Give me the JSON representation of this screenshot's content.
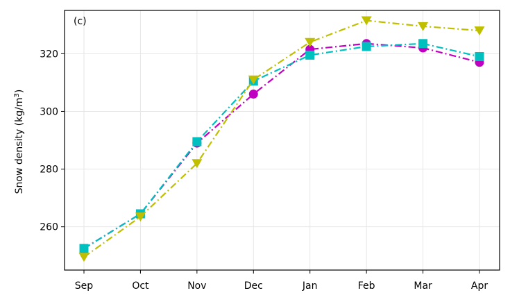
{
  "chart_data": {
    "type": "line",
    "panel_label": "(c)",
    "ylabel_main": "Snow density (kg/m",
    "ylabel_sup": "3",
    "ylabel_close": ")",
    "categories": [
      "Sep",
      "Oct",
      "Nov",
      "Dec",
      "Jan",
      "Feb",
      "Mar",
      "Apr"
    ],
    "ylim": [
      245,
      335
    ],
    "yticks": [
      260,
      280,
      300,
      320
    ],
    "grid": true,
    "series": [
      {
        "color": "#c000c0",
        "marker": "circle",
        "linestyle": "dashdot",
        "values": [
          252.5,
          264.5,
          289,
          306,
          321.5,
          323.5,
          322,
          317
        ]
      },
      {
        "color": "#00bfbf",
        "marker": "square",
        "linestyle": "dashdot",
        "values": [
          252.5,
          264.5,
          289.5,
          310.5,
          319.5,
          322.5,
          323.5,
          319
        ]
      },
      {
        "color": "#bfbf00",
        "marker": "triangle-down",
        "linestyle": "dashdot",
        "values": [
          249.5,
          263.5,
          282,
          311,
          324,
          331.5,
          329.5,
          328
        ]
      }
    ]
  }
}
